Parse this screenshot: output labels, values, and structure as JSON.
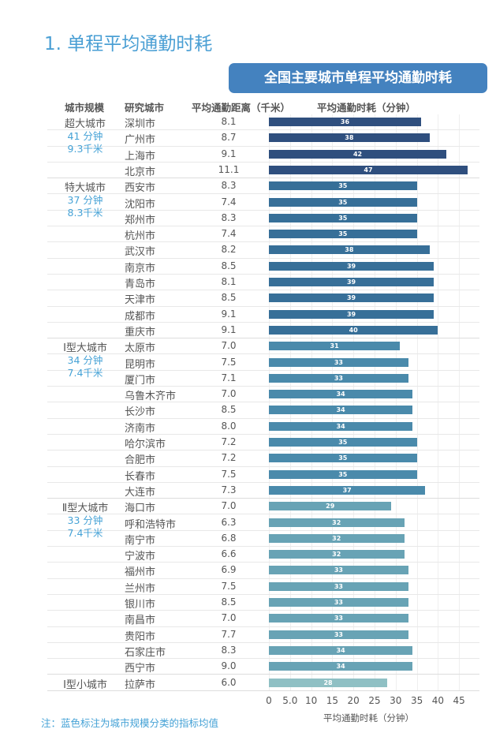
{
  "title": "1. 单程平均通勤时耗",
  "chart_data": {
    "type": "bar",
    "title": "全国主要城市单程平均通勤时耗",
    "headers": [
      "城市规模",
      "研究城市",
      "平均通勤距离（千米）",
      "平均通勤时耗（分钟）"
    ],
    "xlabel": "平均通勤时耗（分钟）",
    "xlim": [
      0,
      47
    ],
    "xticks": [
      0,
      5,
      10,
      15,
      20,
      25,
      30,
      35,
      40,
      45
    ],
    "grid": true,
    "groups": [
      {
        "name": "超大城市",
        "avg_time": "41 分钟",
        "avg_dist": "9.3千米",
        "color": "#2f4f7e",
        "cities": [
          [
            "深圳市",
            8.1,
            36
          ],
          [
            "广州市",
            8.7,
            38
          ],
          [
            "上海市",
            9.1,
            42
          ],
          [
            "北京市",
            11.1,
            47
          ]
        ]
      },
      {
        "name": "特大城市",
        "avg_time": "37 分钟",
        "avg_dist": "8.3千米",
        "color": "#376f98",
        "cities": [
          [
            "西安市",
            8.3,
            35
          ],
          [
            "沈阳市",
            7.4,
            35
          ],
          [
            "郑州市",
            8.3,
            35
          ],
          [
            "杭州市",
            7.4,
            35
          ],
          [
            "武汉市",
            8.2,
            38
          ],
          [
            "南京市",
            8.5,
            39
          ],
          [
            "青岛市",
            8.1,
            39
          ],
          [
            "天津市",
            8.5,
            39
          ],
          [
            "成都市",
            9.1,
            39
          ],
          [
            "重庆市",
            9.1,
            40
          ]
        ]
      },
      {
        "name": "Ⅰ型大城市",
        "avg_time": "34 分钟",
        "avg_dist": "7.4千米",
        "color": "#4a8aab",
        "cities": [
          [
            "太原市",
            7.0,
            31
          ],
          [
            "昆明市",
            7.5,
            33
          ],
          [
            "厦门市",
            7.1,
            33
          ],
          [
            "乌鲁木齐市",
            7.0,
            34
          ],
          [
            "长沙市",
            8.5,
            34
          ],
          [
            "济南市",
            8.0,
            34
          ],
          [
            "哈尔滨市",
            7.2,
            35
          ],
          [
            "合肥市",
            7.2,
            35
          ],
          [
            "长春市",
            7.5,
            35
          ],
          [
            "大连市",
            7.3,
            37
          ]
        ]
      },
      {
        "name": "Ⅱ型大城市",
        "avg_time": "33 分钟",
        "avg_dist": "7.4千米",
        "color": "#68a3b5",
        "cities": [
          [
            "海口市",
            7.0,
            29
          ],
          [
            "呼和浩特市",
            6.3,
            32
          ],
          [
            "南宁市",
            6.8,
            32
          ],
          [
            "宁波市",
            6.6,
            32
          ],
          [
            "福州市",
            6.9,
            33
          ],
          [
            "兰州市",
            7.5,
            33
          ],
          [
            "银川市",
            8.5,
            33
          ],
          [
            "南昌市",
            7.0,
            33
          ],
          [
            "贵阳市",
            7.7,
            33
          ],
          [
            "石家庄市",
            8.3,
            34
          ],
          [
            "西宁市",
            9.0,
            34
          ]
        ]
      },
      {
        "name": "Ⅰ型小城市",
        "avg_time": "",
        "avg_dist": "",
        "color": "#8fc0c4",
        "cities": [
          [
            "拉萨市",
            6.0,
            28
          ]
        ]
      }
    ]
  },
  "note": "注：蓝色标注为城市规模分类的指标均值"
}
